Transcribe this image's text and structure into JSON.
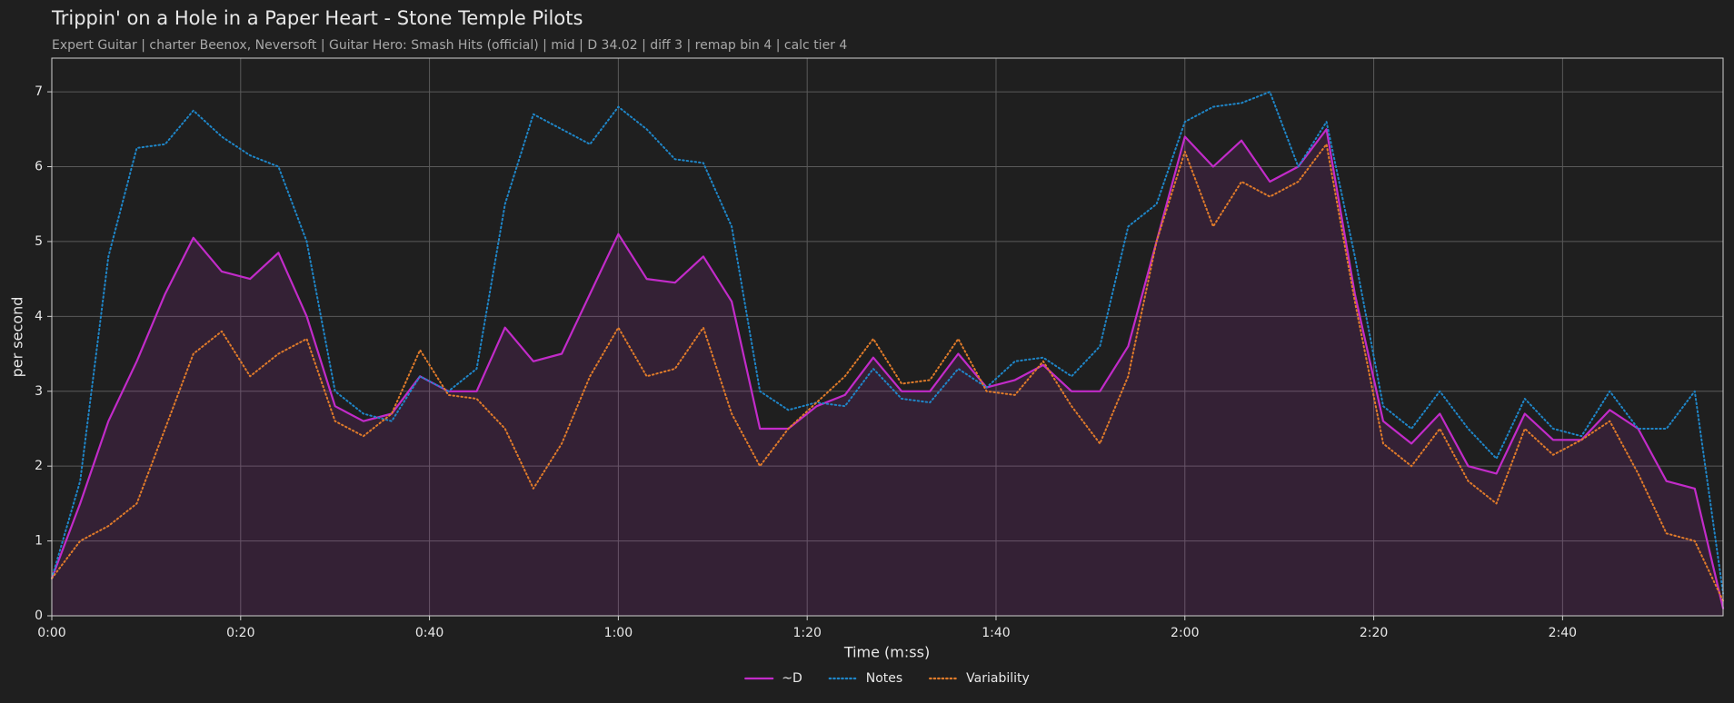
{
  "chart_data": {
    "type": "line",
    "title": "Trippin' on a Hole in a Paper Heart - Stone Temple Pilots",
    "subtitle": "Expert Guitar  |  charter Beenox,  Neversoft  |  Guitar Hero: Smash Hits (official)  |  mid  |  D 34.02  |  diff 3  |  remap bin 4  |  calc tier 4",
    "x_label": "Time (m:ss)",
    "y_label": "per second",
    "x": [
      0,
      3,
      6,
      9,
      12,
      15,
      18,
      21,
      24,
      27,
      30,
      33,
      36,
      39,
      42,
      45,
      48,
      51,
      54,
      57,
      60,
      63,
      66,
      69,
      72,
      75,
      78,
      81,
      84,
      87,
      90,
      93,
      96,
      99,
      102,
      105,
      108,
      111,
      114,
      117,
      120,
      123,
      126,
      129,
      132,
      135,
      138,
      141,
      144,
      147,
      150,
      153,
      156,
      159,
      162,
      165,
      168,
      171,
      174,
      177
    ],
    "series": [
      {
        "name": "~D",
        "color": "#c22bc9",
        "style": "solid",
        "fill": true,
        "values": [
          0.5,
          1.5,
          2.6,
          3.4,
          4.3,
          5.05,
          4.6,
          4.5,
          4.85,
          4.0,
          2.8,
          2.6,
          2.7,
          3.2,
          3.0,
          3.0,
          3.85,
          3.4,
          3.5,
          4.3,
          5.1,
          4.5,
          4.45,
          4.8,
          4.2,
          2.5,
          2.5,
          2.8,
          2.95,
          3.45,
          3.0,
          3.0,
          3.5,
          3.05,
          3.15,
          3.35,
          3.0,
          3.0,
          3.6,
          5.0,
          6.4,
          6.0,
          6.35,
          5.8,
          6.0,
          6.5,
          4.3,
          2.6,
          2.3,
          2.7,
          2.0,
          1.9,
          2.7,
          2.35,
          2.35,
          2.75,
          2.5,
          1.8,
          1.7,
          0.1
        ]
      },
      {
        "name": "Notes",
        "color": "#1f86c8",
        "style": "dotted",
        "fill": false,
        "values": [
          0.5,
          1.8,
          4.8,
          6.25,
          6.3,
          6.75,
          6.4,
          6.15,
          6.0,
          5.0,
          3.0,
          2.7,
          2.6,
          3.2,
          3.0,
          3.3,
          5.5,
          6.7,
          6.5,
          6.3,
          6.8,
          6.5,
          6.1,
          6.05,
          5.2,
          3.0,
          2.75,
          2.85,
          2.8,
          3.3,
          2.9,
          2.85,
          3.3,
          3.05,
          3.4,
          3.45,
          3.2,
          3.6,
          5.2,
          5.5,
          6.6,
          6.8,
          6.85,
          7.0,
          6.0,
          6.6,
          4.8,
          2.8,
          2.5,
          3.0,
          2.5,
          2.1,
          2.9,
          2.5,
          2.4,
          3.0,
          2.5,
          2.5,
          3.0,
          0.3
        ]
      },
      {
        "name": "Variability",
        "color": "#e07b2a",
        "style": "dotted",
        "fill": false,
        "values": [
          0.5,
          1.0,
          1.2,
          1.5,
          2.5,
          3.5,
          3.8,
          3.2,
          3.5,
          3.7,
          2.6,
          2.4,
          2.7,
          3.55,
          2.95,
          2.9,
          2.5,
          1.7,
          2.3,
          3.2,
          3.85,
          3.2,
          3.3,
          3.85,
          2.7,
          2.0,
          2.5,
          2.85,
          3.2,
          3.7,
          3.1,
          3.15,
          3.7,
          3.0,
          2.95,
          3.4,
          2.8,
          2.3,
          3.2,
          5.0,
          6.2,
          5.2,
          5.8,
          5.6,
          5.8,
          6.3,
          4.2,
          2.3,
          2.0,
          2.5,
          1.8,
          1.5,
          2.5,
          2.15,
          2.35,
          2.6,
          1.9,
          1.1,
          1.0,
          0.2
        ]
      }
    ],
    "xlim": [
      0,
      177
    ],
    "ylim": [
      0,
      7.45
    ],
    "xticks": [
      {
        "value": 0,
        "label": "0:00"
      },
      {
        "value": 20,
        "label": "0:20"
      },
      {
        "value": 40,
        "label": "0:40"
      },
      {
        "value": 60,
        "label": "1:00"
      },
      {
        "value": 80,
        "label": "1:20"
      },
      {
        "value": 100,
        "label": "1:40"
      },
      {
        "value": 120,
        "label": "2:00"
      },
      {
        "value": 140,
        "label": "2:20"
      },
      {
        "value": 160,
        "label": "2:40"
      }
    ],
    "yticks": [
      0,
      1,
      2,
      3,
      4,
      5,
      6,
      7
    ],
    "grid": true,
    "legend": "bottom"
  }
}
